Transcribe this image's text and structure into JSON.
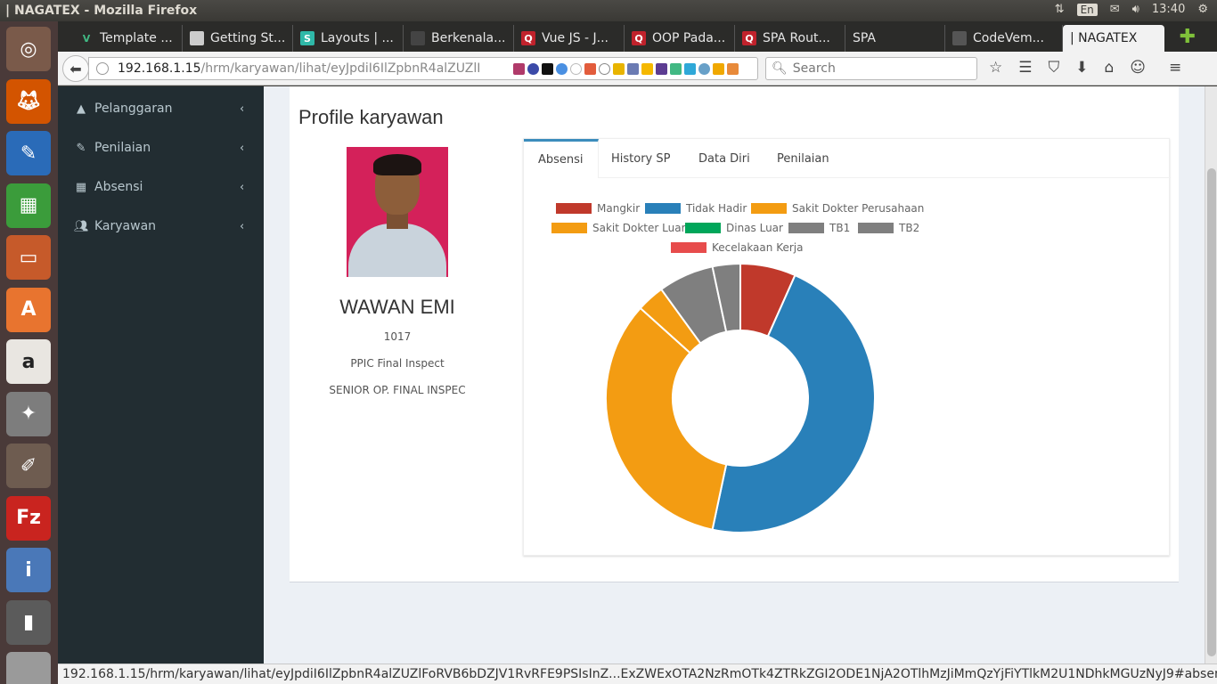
{
  "window": {
    "title": "| NAGATEX - Mozilla Firefox"
  },
  "system_tray": {
    "keyboard": "En",
    "time": "13:40"
  },
  "launcher": {
    "items": [
      {
        "icon": "ubuntu-dash-icon",
        "color": "#7a5a4a"
      },
      {
        "icon": "firefox-icon",
        "color": "#d35400"
      },
      {
        "icon": "libreoffice-writer-icon",
        "color": "#2a6bb8"
      },
      {
        "icon": "libreoffice-calc-icon",
        "color": "#3b9c3b"
      },
      {
        "icon": "libreoffice-impress-icon",
        "color": "#c65a2a"
      },
      {
        "icon": "software-center-icon",
        "color": "#e8742f"
      },
      {
        "icon": "amazon-icon",
        "color": "#e9e6e1"
      },
      {
        "icon": "system-settings-icon",
        "color": "#7d7d7d"
      },
      {
        "icon": "paint-icon",
        "color": "#6e5c50"
      },
      {
        "icon": "filezilla-icon",
        "color": "#c9241f"
      },
      {
        "icon": "mysql-workbench-icon",
        "color": "#4a78b8"
      },
      {
        "icon": "terminal-icon",
        "color": "#5b5b5b"
      },
      {
        "icon": "workspace-switcher-icon",
        "color": "#9a9a9a"
      }
    ]
  },
  "browser": {
    "tabs": [
      {
        "label": "Template ...",
        "icon": "vue-icon",
        "icon_color": "#41b883"
      },
      {
        "label": "Getting St...",
        "icon": "docs-icon",
        "icon_color": "#cccccc"
      },
      {
        "label": "Layouts | ...",
        "icon": "s-icon",
        "icon_color": "#2fb8a8"
      },
      {
        "label": "Berkenala...",
        "icon": "hat-icon",
        "icon_color": "#444444"
      },
      {
        "label": "Vue JS - J...",
        "icon": "q-icon",
        "icon_color": "#c0222c"
      },
      {
        "label": "OOP Pada...",
        "icon": "q-icon",
        "icon_color": "#c0222c"
      },
      {
        "label": "SPA Rout...",
        "icon": "q-icon",
        "icon_color": "#c0222c"
      },
      {
        "label": "SPA",
        "icon": "",
        "icon_color": ""
      },
      {
        "label": "CodeVem...",
        "icon": "codevember-icon",
        "icon_color": "#555555"
      },
      {
        "label": "| NAGATEX",
        "icon": "",
        "icon_color": "",
        "active": true
      }
    ],
    "url_host": "192.168.1.15",
    "url_path": "/hrm/karyawan/lihat/eyJpdiI6IlZpbnR4alZUZlI",
    "search_placeholder": "Search",
    "status_url": "192.168.1.15/hrm/karyawan/lihat/eyJpdiI6IlZpbnR4alZUZlFoRVB6bDZJV1RvRFE9PSIsInZ...ExZWExOTA2NzRmOTk4ZTRkZGI2ODE1NjA2OTlhMzJiMmQzYjFiYTlkM2U1NDhkMGUzNyJ9#absensi"
  },
  "sidebar": {
    "items": [
      {
        "label": "Pelanggaran",
        "icon": "warning-icon"
      },
      {
        "label": "Penilaian",
        "icon": "edit-icon"
      },
      {
        "label": "Absensi",
        "icon": "calendar-icon"
      },
      {
        "label": "Karyawan",
        "icon": "users-icon"
      }
    ]
  },
  "profile": {
    "page_title": "Profile karyawan",
    "name": "WAWAN EMI",
    "employee_id": "1017",
    "department": "PPIC Final Inspect",
    "position": "SENIOR OP. FINAL INSPEC"
  },
  "profile_tabs": [
    {
      "label": "Absensi",
      "active": true
    },
    {
      "label": "History SP"
    },
    {
      "label": "Data Diri"
    },
    {
      "label": "Penilaian"
    }
  ],
  "chart_data": {
    "type": "pie",
    "variant": "doughnut",
    "series": [
      {
        "name": "Mangkir",
        "value": 2,
        "color": "#c0392b"
      },
      {
        "name": "Tidak Hadir",
        "value": 14,
        "color": "#2980b9"
      },
      {
        "name": "Sakit Dokter Perusahaan",
        "value": 10,
        "color": "#f39c12"
      },
      {
        "name": "Sakit Dokter Luar",
        "value": 1,
        "color": "#f39c12"
      },
      {
        "name": "Dinas Luar",
        "value": 0,
        "color": "#00a65a"
      },
      {
        "name": "TB1",
        "value": 2,
        "color": "#7f7f7f"
      },
      {
        "name": "TB2",
        "value": 1,
        "color": "#7f7f7f"
      },
      {
        "name": "Kecelakaan Kerja",
        "value": 0,
        "color": "#e74c4c"
      }
    ]
  }
}
